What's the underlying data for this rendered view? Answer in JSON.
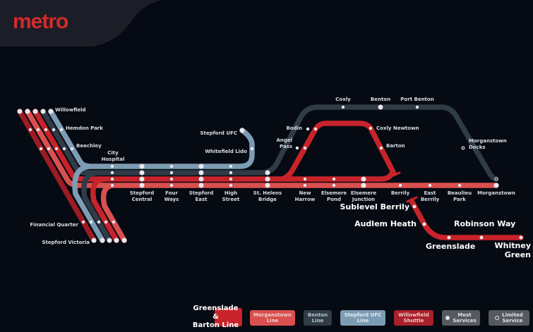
{
  "brand": {
    "logo": "metro"
  },
  "colors": {
    "background": "#060a12",
    "header": "#1b1e27",
    "morganstown": "#d9504f",
    "greenslade_barton": "#c8232b",
    "willowfield": "#9c1b25",
    "benton": "#2f3b46",
    "stepford_ufc": "#7c9cb3"
  },
  "stations": [
    "Willowfield",
    "Hemdon Park",
    "Beechley",
    "City\nHospital",
    "Stepford UFC",
    "Whitefield Lido",
    "Stepford\nCentral",
    "Four\nWays",
    "Stepford\nEast",
    "High\nStreet",
    "St. Helens\nBridge",
    "New\nHarrow",
    "Elsemere\nPond",
    "Elsemere\nJunction",
    "Berrily",
    "East\nBerrily",
    "Beaulieu\nPark",
    "Morganstown",
    "Angel\nPass",
    "Bodin",
    "Coxly",
    "Benton",
    "Port Benton",
    "Coxly Newtown",
    "Barton",
    "Morganstown\nDocks",
    "Financial Quarter",
    "Stepford Victoria"
  ],
  "new_stations": [
    "Sublevel Berrily",
    "Audlem Heath",
    "Robinson Way",
    "Greenslade",
    "Whitney\nGreen"
  ],
  "legend": [
    {
      "label": "Greenslade &\nBarton Line"
    },
    {
      "label": "Morganstown\nLine"
    },
    {
      "label": "Benton\nLine"
    },
    {
      "label": "Stepford UFC\nLine"
    },
    {
      "label": "Willowfield\nShuttle"
    },
    {
      "label": "Most\nServices",
      "icon": "filled-circle-icon"
    },
    {
      "label": "Limited\nService",
      "icon": "hollow-circle-icon"
    }
  ]
}
